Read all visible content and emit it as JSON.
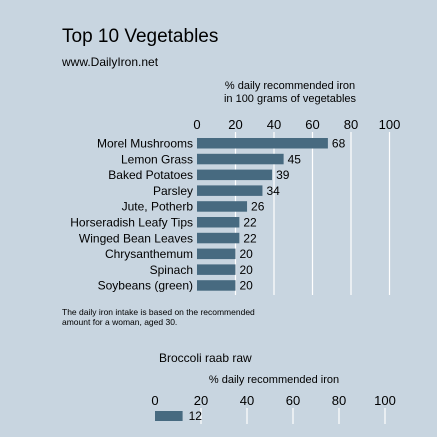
{
  "chart_data": [
    {
      "type": "bar",
      "orientation": "horizontal",
      "title": "Top 10 Vegetables",
      "subtitle": "www.DailyIron.net",
      "xlabel": [
        "% daily recommended iron",
        "in 100 grams of vegetables"
      ],
      "xlim": [
        0,
        100
      ],
      "xticks": [
        "0",
        "20",
        "40",
        "60",
        "80",
        "100"
      ],
      "categories": [
        "Morel Mushrooms",
        "Lemon Grass",
        "Baked Potatoes",
        "Parsley",
        "Jute, Potherb",
        "Horseradish Leafy Tips",
        "Winged Bean Leaves",
        "Chrysanthemum",
        "Spinach",
        "Soybeans (green)"
      ],
      "values": [
        68,
        45,
        39,
        34,
        26,
        22,
        22,
        20,
        20,
        20
      ],
      "bar_color": "#476a80",
      "gridlines": true,
      "grid_color": "#ffffff",
      "note": [
        "The daily iron intake is based on the recommended",
        "amount for a woman, aged 30."
      ]
    },
    {
      "type": "bar",
      "orientation": "horizontal",
      "title": "Broccoli raab raw",
      "xlabel": "% daily recommended iron",
      "xlim": [
        0,
        100
      ],
      "xticks": [
        "0",
        "20",
        "40",
        "60",
        "80",
        "100"
      ],
      "values": [
        12
      ],
      "bar_color": "#476a80",
      "gridlines": true
    }
  ]
}
